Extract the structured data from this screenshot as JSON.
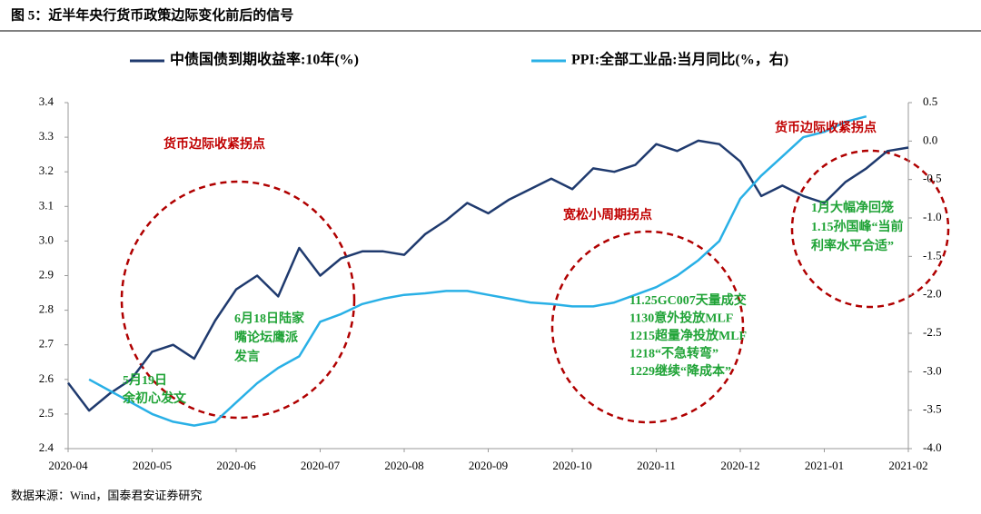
{
  "chart_data": {
    "type": "line",
    "title": "图 5：近半年央行货币政策边际变化前后的信号",
    "source": "数据来源：Wind，国泰君安证券研究",
    "categories": [
      "2020-04",
      null,
      null,
      null,
      "2020-05",
      null,
      null,
      null,
      "2020-06",
      null,
      null,
      null,
      "2020-07",
      null,
      null,
      null,
      "2020-08",
      null,
      null,
      null,
      "2020-09",
      null,
      null,
      null,
      "2020-10",
      null,
      null,
      null,
      "2020-11",
      null,
      null,
      null,
      "2020-12",
      null,
      null,
      null,
      "2021-01",
      null,
      null,
      null,
      "2021-02"
    ],
    "series": [
      {
        "name": "中债国债到期收益率:10年(%)",
        "color": "#1f3a6e",
        "axis": "y",
        "values": [
          2.59,
          2.51,
          2.56,
          2.6,
          2.68,
          2.7,
          2.66,
          2.77,
          2.86,
          2.9,
          2.84,
          2.98,
          2.9,
          2.95,
          2.97,
          2.97,
          2.96,
          3.02,
          3.06,
          3.11,
          3.08,
          3.12,
          3.15,
          3.18,
          3.15,
          3.21,
          3.2,
          3.22,
          3.28,
          3.26,
          3.29,
          3.28,
          3.23,
          3.13,
          3.16,
          3.13,
          3.11,
          3.17,
          3.21,
          3.26,
          3.27
        ]
      },
      {
        "name": "PPI:全部工业品:当月同比(%，右)",
        "color": "#29b0e6",
        "axis": "y2",
        "values": [
          null,
          -3.1,
          -3.25,
          -3.4,
          -3.55,
          -3.65,
          -3.7,
          -3.65,
          -3.4,
          -3.15,
          -2.95,
          -2.8,
          -2.35,
          -2.25,
          -2.12,
          -2.05,
          -2.0,
          -1.98,
          -1.95,
          -1.95,
          -2.0,
          -2.05,
          -2.1,
          -2.12,
          -2.15,
          -2.15,
          -2.1,
          -2.0,
          -1.9,
          -1.75,
          -1.55,
          -1.3,
          -0.75,
          -0.45,
          -0.2,
          0.05,
          0.12,
          0.25,
          0.32,
          null,
          null
        ]
      }
    ],
    "ylim": [
      2.4,
      3.4
    ],
    "yticks": [
      2.4,
      2.5,
      2.6,
      2.7,
      2.8,
      2.9,
      {
        "value": 3,
        "label": "3.0"
      },
      3.1,
      3.2,
      3.3,
      3.4
    ],
    "y2lim": [
      -4,
      0.5
    ],
    "y2ticks": [
      {
        "value": -4,
        "label": "-4.0"
      },
      -3.5,
      {
        "value": -3,
        "label": "-3.0"
      },
      -2.5,
      {
        "value": -2,
        "label": "-2.0"
      },
      -1.5,
      {
        "value": -1,
        "label": "-1.0"
      },
      -0.5,
      {
        "value": 0,
        "label": "0.0"
      },
      0.5
    ],
    "annotations": [
      {
        "color": "#c00000",
        "lines": [
          "货币边际收紧拐点"
        ]
      },
      {
        "color": "#1fa336",
        "lines": [
          "5月19日",
          "余初心发文"
        ]
      },
      {
        "color": "#1fa336",
        "lines": [
          "6月18日陆家",
          "嘴论坛鹰派",
          "发言"
        ]
      },
      {
        "color": "#c00000",
        "lines": [
          "宽松小周期拐点"
        ]
      },
      {
        "color": "#1fa336",
        "lines": [
          "11.25GC007天量成交",
          "1130意外投放MLF",
          "1215超量净投放MLF",
          "1218“不急转弯”",
          "1229继续“降成本”"
        ]
      },
      {
        "color": "#c00000",
        "lines": [
          "货币边际收紧拐点"
        ]
      },
      {
        "color": "#1fa336",
        "lines": [
          "1月大幅净回笼",
          "1.15孙国峰“当前",
          "利率水平合适”"
        ]
      }
    ]
  }
}
